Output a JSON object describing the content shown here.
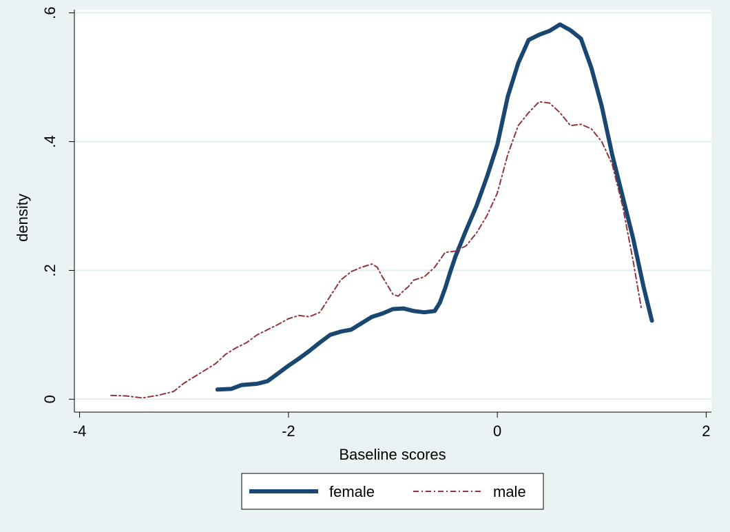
{
  "chart_data": {
    "type": "line",
    "title": "",
    "xlabel": "Baseline scores",
    "ylabel": "density",
    "xlim": [
      -4.05,
      2.05
    ],
    "ylim": [
      -0.02,
      0.605
    ],
    "xticks": [
      -4,
      -2,
      0,
      2
    ],
    "xtick_labels": [
      "-4",
      "-2",
      "0",
      "2"
    ],
    "yticks": [
      0,
      0.2,
      0.4,
      0.6
    ],
    "ytick_labels": [
      "0",
      ".2",
      ".4",
      ".6"
    ],
    "grid": "horizontal",
    "legend_position": "bottom",
    "series": [
      {
        "name": "female",
        "color": "#1a476f",
        "style": "solid",
        "x": [
          -2.68,
          -2.55,
          -2.45,
          -2.3,
          -2.2,
          -2.1,
          -2.0,
          -1.9,
          -1.8,
          -1.7,
          -1.6,
          -1.5,
          -1.4,
          -1.3,
          -1.2,
          -1.1,
          -1.0,
          -0.9,
          -0.8,
          -0.7,
          -0.6,
          -0.55,
          -0.5,
          -0.45,
          -0.4,
          -0.3,
          -0.2,
          -0.1,
          0.0,
          0.1,
          0.2,
          0.3,
          0.4,
          0.5,
          0.6,
          0.7,
          0.8,
          0.9,
          1.0,
          1.1,
          1.2,
          1.3,
          1.4,
          1.48
        ],
        "y": [
          0.015,
          0.016,
          0.022,
          0.024,
          0.028,
          0.04,
          0.052,
          0.063,
          0.075,
          0.088,
          0.1,
          0.105,
          0.108,
          0.118,
          0.128,
          0.133,
          0.14,
          0.141,
          0.137,
          0.135,
          0.137,
          0.15,
          0.172,
          0.198,
          0.222,
          0.262,
          0.3,
          0.345,
          0.395,
          0.47,
          0.522,
          0.558,
          0.566,
          0.572,
          0.582,
          0.573,
          0.56,
          0.515,
          0.455,
          0.38,
          0.315,
          0.25,
          0.175,
          0.122
        ]
      },
      {
        "name": "male",
        "color": "#90353b",
        "style": "dash-dot",
        "x": [
          -3.7,
          -3.55,
          -3.4,
          -3.25,
          -3.1,
          -3.0,
          -2.9,
          -2.8,
          -2.7,
          -2.6,
          -2.5,
          -2.4,
          -2.3,
          -2.2,
          -2.1,
          -2.0,
          -1.9,
          -1.8,
          -1.7,
          -1.6,
          -1.5,
          -1.4,
          -1.3,
          -1.2,
          -1.15,
          -1.1,
          -1.0,
          -0.95,
          -0.9,
          -0.85,
          -0.8,
          -0.7,
          -0.6,
          -0.5,
          -0.4,
          -0.3,
          -0.2,
          -0.1,
          0.0,
          0.1,
          0.2,
          0.3,
          0.4,
          0.5,
          0.6,
          0.7,
          0.8,
          0.9,
          1.0,
          1.1,
          1.2,
          1.3,
          1.38
        ],
        "y": [
          0.006,
          0.005,
          0.002,
          0.006,
          0.012,
          0.025,
          0.035,
          0.045,
          0.055,
          0.07,
          0.08,
          0.088,
          0.1,
          0.108,
          0.116,
          0.125,
          0.13,
          0.128,
          0.135,
          0.16,
          0.185,
          0.198,
          0.205,
          0.21,
          0.205,
          0.19,
          0.163,
          0.16,
          0.168,
          0.175,
          0.185,
          0.19,
          0.205,
          0.228,
          0.23,
          0.238,
          0.258,
          0.285,
          0.32,
          0.38,
          0.425,
          0.445,
          0.462,
          0.46,
          0.445,
          0.425,
          0.427,
          0.42,
          0.4,
          0.365,
          0.3,
          0.215,
          0.14
        ]
      }
    ]
  }
}
